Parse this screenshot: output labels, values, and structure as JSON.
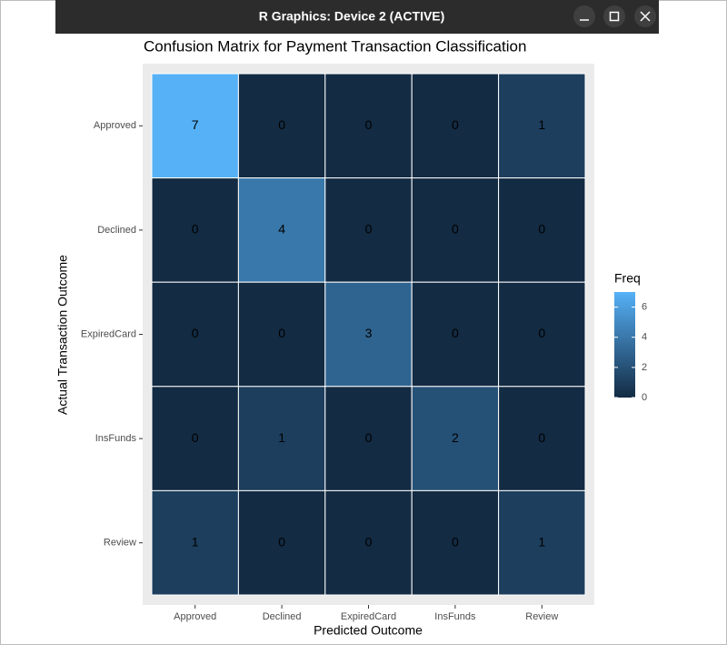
{
  "window": {
    "title": "R Graphics: Device 2 (ACTIVE)"
  },
  "chart_data": {
    "type": "heatmap",
    "title": "Confusion Matrix for Payment Transaction Classification",
    "x_label": "Predicted Outcome",
    "y_label": "Actual Transaction Outcome",
    "x_categories": [
      "Approved",
      "Declined",
      "ExpiredCard",
      "InsFunds",
      "Review"
    ],
    "y_categories": [
      "Approved",
      "Declined",
      "ExpiredCard",
      "InsFunds",
      "Review"
    ],
    "values": [
      [
        7,
        0,
        0,
        0,
        1
      ],
      [
        0,
        4,
        0,
        0,
        0
      ],
      [
        0,
        0,
        3,
        0,
        0
      ],
      [
        0,
        1,
        0,
        2,
        0
      ],
      [
        1,
        0,
        0,
        0,
        1
      ]
    ],
    "legend": {
      "title": "Freq",
      "lim": [
        0,
        7
      ],
      "ticks": [
        0,
        2,
        4,
        6
      ],
      "low_color": "#132B43",
      "high_color": "#56B1F7"
    }
  }
}
